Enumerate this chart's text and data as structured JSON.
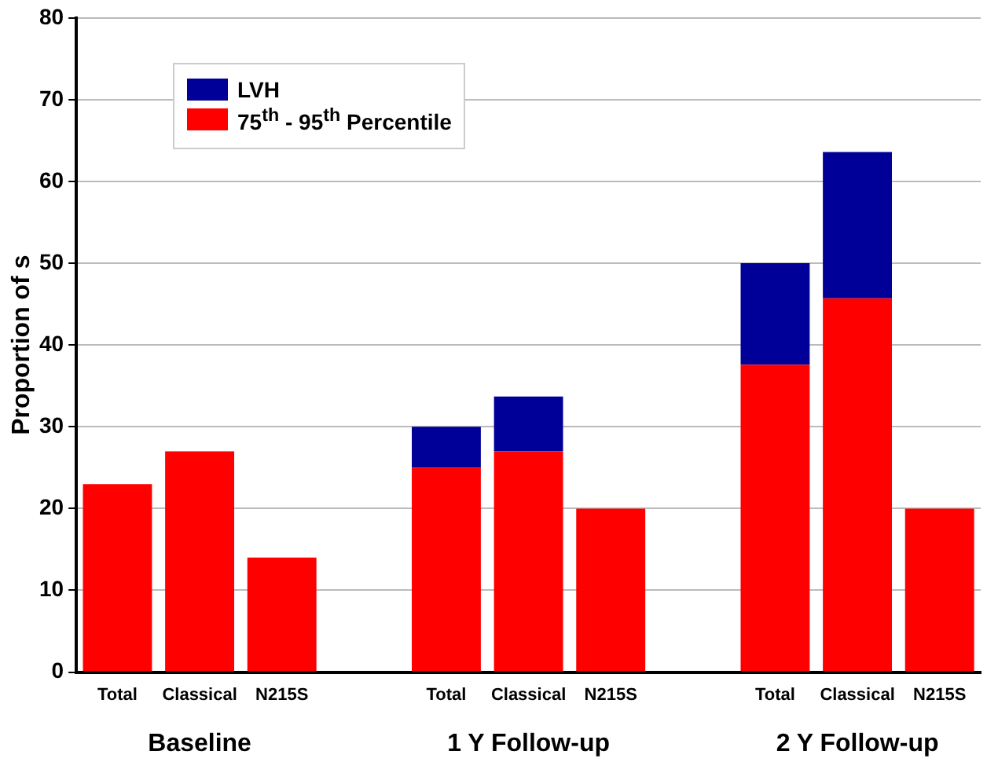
{
  "chart_data": {
    "type": "bar",
    "stacked": true,
    "ylabel": "Proportion of s",
    "categories": [
      "Total",
      "Classical",
      "N215S",
      null,
      "Total",
      "Classical",
      "N215S",
      null,
      "Total",
      "Classical",
      "N215S"
    ],
    "series": [
      {
        "name": "75$^{th}$ - 95$^{th}$ Percentile",
        "color": "#ff0000",
        "values": [
          23,
          27,
          14,
          null,
          25,
          27,
          20,
          null,
          37.6,
          45.7,
          20
        ]
      },
      {
        "name": "LVH",
        "color": "#000099",
        "values": [
          null,
          null,
          null,
          null,
          5,
          6.7,
          null,
          null,
          12.4,
          17.9,
          null
        ]
      }
    ],
    "annotations": [
      "Baseline",
      "1 Y Follow-up",
      "2 Y Follow-up"
    ],
    "ylim": [
      0,
      80
    ],
    "yticks": [
      0,
      10,
      20,
      30,
      40,
      50,
      60,
      70,
      80
    ],
    "grid": "y",
    "legend": "top left"
  }
}
